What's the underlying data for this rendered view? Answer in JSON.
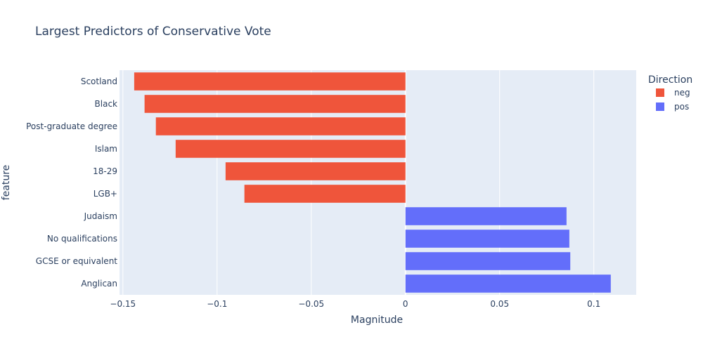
{
  "chart_data": {
    "type": "bar",
    "orientation": "horizontal",
    "title": "Largest Predictors of Conservative Vote",
    "xlabel": "Magnitude",
    "ylabel": "feature",
    "xlim": [
      -0.1518,
      0.1225
    ],
    "xticks": [
      -0.15,
      -0.1,
      -0.05,
      0,
      0.05,
      0.1
    ],
    "xtick_labels": [
      "−0.15",
      "−0.1",
      "−0.05",
      "0",
      "0.05",
      "0.1"
    ],
    "grid": true,
    "legend": {
      "title": "Direction",
      "position": "top-right",
      "entries": [
        {
          "name": "neg",
          "color": "#EF553B"
        },
        {
          "name": "pos",
          "color": "#636EFA"
        }
      ]
    },
    "categories": [
      "Scotland",
      "Black",
      "Post-graduate degree",
      "Islam",
      "18-29",
      "LGB+",
      "Judaism",
      "No qualifications",
      "GCSE or equivalent",
      "Anglican"
    ],
    "values": [
      -0.144,
      -0.1385,
      -0.1325,
      -0.122,
      -0.0955,
      -0.0855,
      0.0855,
      0.087,
      0.0875,
      0.109
    ],
    "directions": [
      "neg",
      "neg",
      "neg",
      "neg",
      "neg",
      "neg",
      "pos",
      "pos",
      "pos",
      "pos"
    ],
    "plot_bg": "#E5ECF6"
  }
}
